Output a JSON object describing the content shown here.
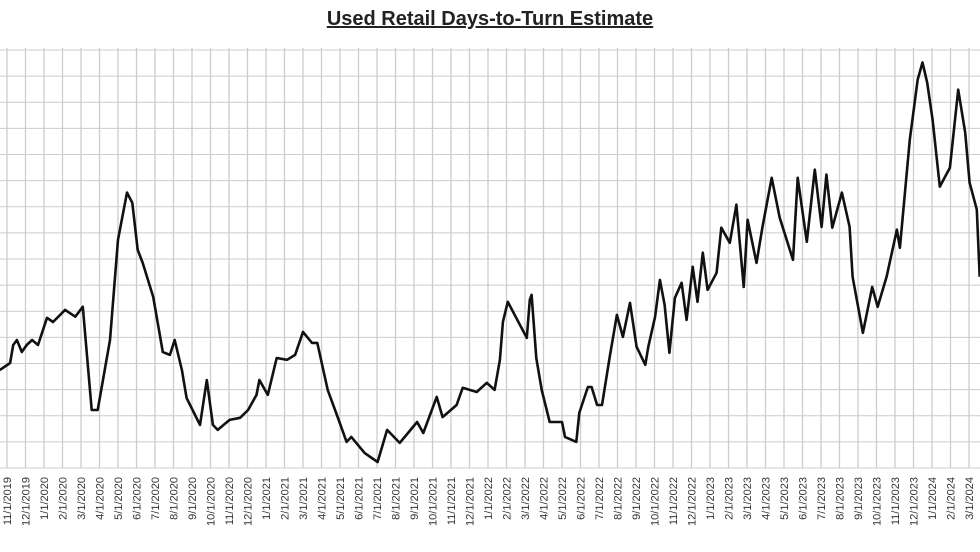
{
  "chart_data": {
    "type": "line",
    "title": "Used Retail Days-to-Turn Estimate",
    "xlabel": "",
    "ylabel": "",
    "ylim": [
      0,
      16
    ],
    "y_tick_labels_visible": false,
    "grid": true,
    "line_color": "#111111",
    "grid_color": "#cccccc",
    "x_tick_labels": [
      "11/1/2019",
      "12/1/2019",
      "1/1/2020",
      "2/1/2020",
      "3/1/2020",
      "4/1/2020",
      "5/1/2020",
      "6/1/2020",
      "7/1/2020",
      "8/1/2020",
      "9/1/2020",
      "10/1/2020",
      "11/1/2020",
      "12/1/2020",
      "1/1/2021",
      "2/1/2021",
      "3/1/2021",
      "4/1/2021",
      "5/1/2021",
      "6/1/2021",
      "7/1/2021",
      "8/1/2021",
      "9/1/2021",
      "10/1/2021",
      "11/1/2021",
      "12/1/2021",
      "1/1/2022",
      "2/1/2022",
      "3/1/2022",
      "4/1/2022",
      "5/1/2022",
      "6/1/2022",
      "7/1/2022",
      "8/1/2022",
      "9/1/2022",
      "10/1/2022",
      "11/1/2022",
      "12/1/2022",
      "1/1/2023",
      "2/1/2023",
      "3/1/2023",
      "4/1/2023",
      "5/1/2023",
      "6/1/2023",
      "7/1/2023",
      "8/1/2023",
      "9/1/2023",
      "10/1/2023",
      "11/1/2023",
      "12/1/2023",
      "1/1/2024",
      "2/1/2024",
      "3/1/2024"
    ],
    "series": [
      {
        "x": [
          "2019-10-20",
          "2019-11-06",
          "2019-11-11",
          "2019-11-17",
          "2019-11-25",
          "2019-12-03",
          "2019-12-12",
          "2019-12-22",
          "2020-01-06",
          "2020-01-16",
          "2020-02-05",
          "2020-02-21",
          "2020-03-04",
          "2020-03-19",
          "2020-03-29",
          "2020-04-18",
          "2020-05-01",
          "2020-05-16",
          "2020-05-25",
          "2020-06-03",
          "2020-06-11",
          "2020-06-28",
          "2020-07-14",
          "2020-07-26",
          "2020-08-03",
          "2020-08-15",
          "2020-08-23",
          "2020-09-14",
          "2020-09-25",
          "2020-10-05",
          "2020-10-13",
          "2020-11-02",
          "2020-11-19",
          "2020-12-02",
          "2020-12-16",
          "2020-12-21",
          "2021-01-04",
          "2021-01-19",
          "2021-02-05",
          "2021-02-17",
          "2021-03-01",
          "2021-03-16",
          "2021-03-25",
          "2021-04-11",
          "2021-04-26",
          "2021-05-12",
          "2021-05-20",
          "2021-06-11",
          "2021-07-02",
          "2021-07-18",
          "2021-08-08",
          "2021-08-22",
          "2021-09-06",
          "2021-09-16",
          "2021-10-08",
          "2021-10-18",
          "2021-11-10",
          "2021-11-20",
          "2021-12-13",
          "2021-12-30",
          "2022-01-12",
          "2022-01-21",
          "2022-01-26",
          "2022-02-03",
          "2022-03-04",
          "2022-03-09",
          "2022-03-12",
          "2022-03-20",
          "2022-03-29",
          "2022-04-11",
          "2022-05-01",
          "2022-05-06",
          "2022-05-25",
          "2022-05-30",
          "2022-06-13",
          "2022-06-19",
          "2022-06-28",
          "2022-07-06",
          "2022-07-19",
          "2022-07-31",
          "2022-08-10",
          "2022-08-22",
          "2022-09-02",
          "2022-09-16",
          "2022-09-21",
          "2022-10-02",
          "2022-10-10",
          "2022-10-18",
          "2022-10-26",
          "2022-11-04",
          "2022-11-15",
          "2022-11-23",
          "2022-12-03",
          "2022-12-11",
          "2022-12-20",
          "2022-12-28",
          "2023-01-12",
          "2023-01-20",
          "2023-02-03",
          "2023-02-13",
          "2023-02-24",
          "2023-03-02",
          "2023-03-17",
          "2023-03-27",
          "2023-04-11",
          "2023-04-24",
          "2023-05-16",
          "2023-05-24",
          "2023-06-08",
          "2023-06-21",
          "2023-07-02",
          "2023-07-10",
          "2023-07-20",
          "2023-08-05",
          "2023-08-18",
          "2023-08-23",
          "2023-09-09",
          "2023-09-24",
          "2023-10-03",
          "2023-10-18",
          "2023-11-04",
          "2023-11-09",
          "2023-11-25",
          "2023-12-08",
          "2023-12-16",
          "2023-12-24",
          "2024-01-02",
          "2024-01-14",
          "2024-01-31",
          "2024-02-13",
          "2024-02-24",
          "2024-03-02",
          "2024-03-14",
          "2024-03-19"
        ],
        "y": [
          3.75,
          4.02,
          4.71,
          4.9,
          4.44,
          4.71,
          4.9,
          4.71,
          5.75,
          5.59,
          6.05,
          5.79,
          6.17,
          2.22,
          2.22,
          4.9,
          8.74,
          10.54,
          10.15,
          8.35,
          7.85,
          6.55,
          4.44,
          4.33,
          4.9,
          3.75,
          2.68,
          1.65,
          3.37,
          1.65,
          1.46,
          1.84,
          1.92,
          2.22,
          2.8,
          3.37,
          2.8,
          4.21,
          4.14,
          4.33,
          5.21,
          4.79,
          4.79,
          2.99,
          2.03,
          1.0,
          1.19,
          0.57,
          0.23,
          1.46,
          0.96,
          1.34,
          1.76,
          1.34,
          2.72,
          1.95,
          2.41,
          3.07,
          2.91,
          3.26,
          2.99,
          4.14,
          5.59,
          6.36,
          4.98,
          6.44,
          6.63,
          4.21,
          2.99,
          1.76,
          1.76,
          1.19,
          1.0,
          2.11,
          3.1,
          3.1,
          2.41,
          2.41,
          4.25,
          5.86,
          5.02,
          6.32,
          4.64,
          3.95,
          4.64,
          5.79,
          7.2,
          6.25,
          4.41,
          6.51,
          7.09,
          5.67,
          7.7,
          6.36,
          8.24,
          6.82,
          7.47,
          9.2,
          8.62,
          10.08,
          6.93,
          9.5,
          7.85,
          9.23,
          11.11,
          9.58,
          7.97,
          11.11,
          8.66,
          11.42,
          9.23,
          11.23,
          9.2,
          10.54,
          9.23,
          7.32,
          5.17,
          6.93,
          6.17,
          7.32,
          9.12,
          8.43,
          12.57,
          14.87,
          15.52,
          14.75,
          13.33,
          10.77,
          11.49,
          14.48,
          12.84,
          10.92,
          9.89,
          7.32
        ]
      }
    ]
  }
}
